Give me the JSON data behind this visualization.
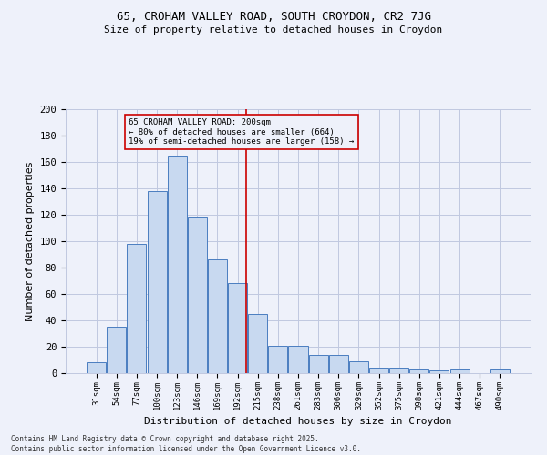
{
  "title1": "65, CROHAM VALLEY ROAD, SOUTH CROYDON, CR2 7JG",
  "title2": "Size of property relative to detached houses in Croydon",
  "xlabel": "Distribution of detached houses by size in Croydon",
  "ylabel": "Number of detached properties",
  "categories": [
    "31sqm",
    "54sqm",
    "77sqm",
    "100sqm",
    "123sqm",
    "146sqm",
    "169sqm",
    "192sqm",
    "215sqm",
    "238sqm",
    "261sqm",
    "283sqm",
    "306sqm",
    "329sqm",
    "352sqm",
    "375sqm",
    "398sqm",
    "421sqm",
    "444sqm",
    "467sqm",
    "490sqm"
  ],
  "values": [
    8,
    35,
    98,
    138,
    165,
    118,
    86,
    68,
    45,
    21,
    21,
    14,
    14,
    9,
    4,
    4,
    3,
    2,
    3,
    0,
    3
  ],
  "bar_color": "#c8d9f0",
  "bar_edge_color": "#4a7dc0",
  "marker_label1": "65 CROHAM VALLEY ROAD: 200sqm",
  "marker_label2": "← 80% of detached houses are smaller (664)",
  "marker_label3": "19% of semi-detached houses are larger (158) →",
  "annotation_box_color": "#cc0000",
  "vline_color": "#cc0000",
  "bg_color": "#eef1fa",
  "grid_color": "#c0c8e0",
  "footer1": "Contains HM Land Registry data © Crown copyright and database right 2025.",
  "footer2": "Contains public sector information licensed under the Open Government Licence v3.0.",
  "ylim": [
    0,
    200
  ],
  "yticks": [
    0,
    20,
    40,
    60,
    80,
    100,
    120,
    140,
    160,
    180,
    200
  ],
  "vline_x": 7.42
}
